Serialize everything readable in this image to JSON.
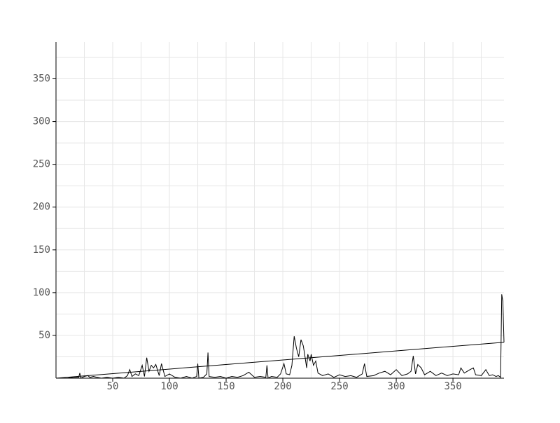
{
  "chart_data": {
    "type": "line",
    "xlim": [
      0,
      395
    ],
    "ylim": [
      0,
      393
    ],
    "xticks": [
      50,
      100,
      150,
      200,
      250,
      300,
      350
    ],
    "yticks": [
      50,
      100,
      150,
      200,
      250,
      300,
      350
    ],
    "xminorticks": [
      25,
      75,
      125,
      175,
      225,
      275,
      325,
      375
    ],
    "yminorticks": [
      25,
      75,
      125,
      175,
      225,
      275,
      325,
      375
    ],
    "grid": true,
    "series": [
      {
        "color": "#000000",
        "x": [
          0,
          5,
          10,
          15,
          20,
          21,
          22,
          25,
          28,
          30,
          33,
          36,
          40,
          45,
          50,
          55,
          60,
          63,
          65,
          67,
          70,
          73,
          76,
          78,
          80,
          82,
          84,
          86,
          88,
          91,
          93,
          96,
          100,
          105,
          110,
          115,
          120,
          124,
          125,
          126,
          130,
          133,
          134,
          135,
          140,
          145,
          150,
          155,
          160,
          165,
          170,
          175,
          180,
          185,
          186,
          187,
          190,
          195,
          198,
          201,
          203,
          206,
          208,
          210,
          212,
          214,
          216,
          218,
          219,
          221,
          222,
          224,
          225,
          227,
          229,
          231,
          235,
          240,
          245,
          250,
          255,
          260,
          265,
          270,
          272,
          274,
          280,
          285,
          290,
          295,
          300,
          305,
          310,
          313,
          315,
          317,
          319,
          322,
          325,
          330,
          335,
          340,
          345,
          350,
          355,
          357,
          360,
          365,
          368,
          370,
          375,
          379,
          382,
          385,
          388,
          390,
          392,
          393,
          394,
          395
        ],
        "values": [
          0,
          0,
          0,
          1,
          1,
          6,
          0,
          2,
          3,
          1,
          2,
          1,
          0,
          1,
          0,
          1,
          0,
          3,
          10,
          2,
          5,
          3,
          15,
          2,
          24,
          8,
          15,
          12,
          16,
          3,
          17,
          2,
          5,
          1,
          0,
          2,
          0,
          2,
          17,
          0,
          1,
          5,
          30,
          2,
          1,
          2,
          0,
          2,
          1,
          3,
          7,
          1,
          2,
          1,
          15,
          0,
          2,
          1,
          5,
          17,
          5,
          4,
          15,
          49,
          35,
          25,
          45,
          38,
          30,
          12,
          28,
          20,
          28,
          15,
          20,
          6,
          3,
          5,
          1,
          4,
          2,
          3,
          1,
          5,
          17,
          2,
          3,
          6,
          8,
          4,
          10,
          3,
          5,
          8,
          26,
          5,
          16,
          12,
          4,
          8,
          3,
          6,
          3,
          5,
          4,
          12,
          6,
          10,
          12,
          4,
          3,
          10,
          3,
          4,
          2,
          3,
          1,
          98,
          90,
          42
        ]
      },
      {
        "color": "#000000",
        "x": [
          0,
          395
        ],
        "values": [
          0,
          42
        ]
      }
    ]
  }
}
